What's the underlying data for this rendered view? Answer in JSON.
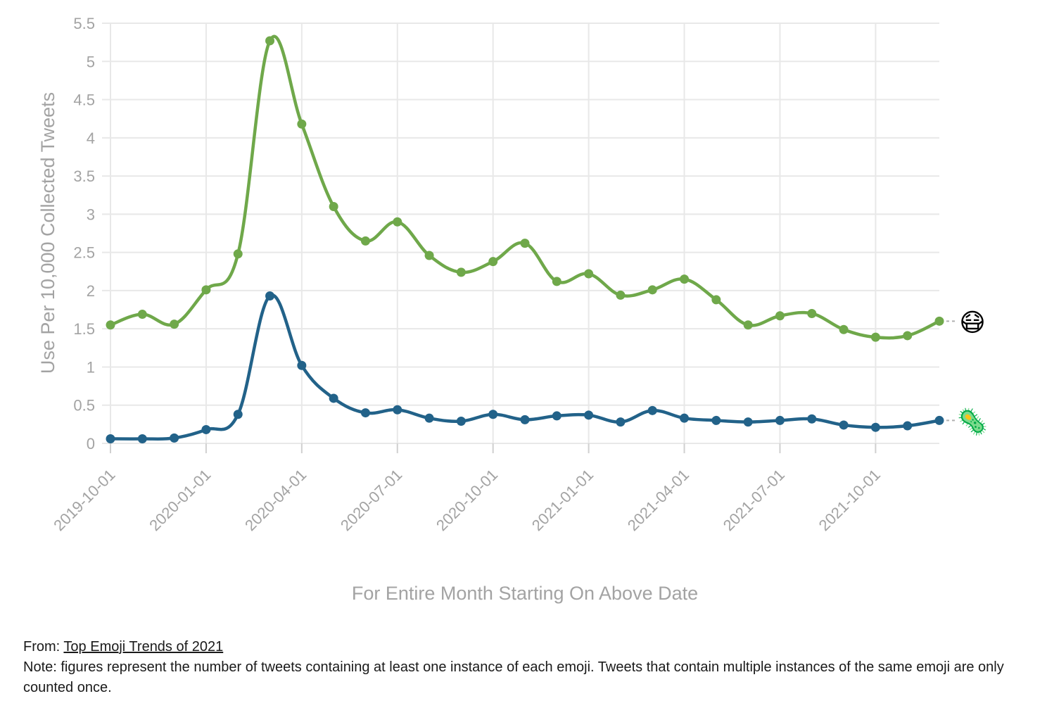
{
  "chart_data": {
    "type": "line",
    "title": "",
    "xlabel": "For Entire Month Starting On Above Date",
    "ylabel": "Use Per 10,000 Collected Tweets",
    "ylim": [
      0,
      5.5
    ],
    "y_ticks": [
      "0",
      "0.5",
      "1",
      "1.5",
      "2",
      "2.5",
      "3",
      "3.5",
      "4",
      "4.5",
      "5",
      "5.5"
    ],
    "x_tick_labels": [
      "2019-10-01",
      "2020-01-01",
      "2020-04-01",
      "2020-07-01",
      "2020-10-01",
      "2021-01-01",
      "2021-04-01",
      "2021-07-01",
      "2021-10-01"
    ],
    "x": [
      "2019-10-01",
      "2019-11-01",
      "2019-12-01",
      "2020-01-01",
      "2020-02-01",
      "2020-03-01",
      "2020-04-01",
      "2020-05-01",
      "2020-06-01",
      "2020-07-01",
      "2020-08-01",
      "2020-09-01",
      "2020-10-01",
      "2020-11-01",
      "2020-12-01",
      "2021-01-01",
      "2021-02-01",
      "2021-03-01",
      "2021-04-01",
      "2021-05-01",
      "2021-06-01",
      "2021-07-01",
      "2021-08-01",
      "2021-09-01",
      "2021-10-01",
      "2021-11-01",
      "2021-12-01"
    ],
    "grid": true,
    "legend": "emoji markers at line ends (right)",
    "series": [
      {
        "emoji": "😷",
        "color": "#6fa84a",
        "values": [
          1.55,
          1.69,
          1.56,
          2.01,
          2.48,
          5.27,
          4.18,
          3.1,
          2.65,
          2.9,
          2.46,
          2.24,
          2.38,
          2.62,
          2.12,
          2.22,
          1.94,
          2.01,
          2.15,
          1.88,
          1.55,
          1.67,
          1.7,
          1.49,
          1.39,
          1.41,
          1.6
        ]
      },
      {
        "emoji": "🦠",
        "color": "#226289",
        "values": [
          0.06,
          0.06,
          0.07,
          0.18,
          0.38,
          1.93,
          1.02,
          0.59,
          0.4,
          0.44,
          0.33,
          0.29,
          0.38,
          0.31,
          0.36,
          0.37,
          0.28,
          0.43,
          0.33,
          0.3,
          0.28,
          0.3,
          0.32,
          0.24,
          0.21,
          0.23,
          0.3
        ]
      }
    ]
  },
  "footer": {
    "from_prefix": "From: ",
    "from_link": "Top Emoji Trends of 2021",
    "note": "Note: figures represent the number of tweets containing at least one instance of each emoji. Tweets that contain multiple instances of the same emoji are only counted once."
  }
}
